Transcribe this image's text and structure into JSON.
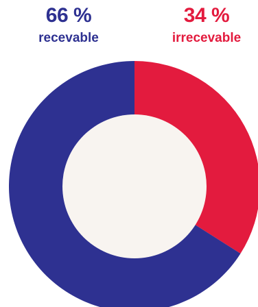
{
  "chart_data": {
    "type": "pie",
    "style": "donut",
    "categories": [
      "recevable",
      "irrecevable"
    ],
    "values": [
      66,
      34
    ],
    "value_labels": [
      "66 %",
      "34 %"
    ],
    "colors": [
      "#2e3191",
      "#e31b3e"
    ],
    "center_color": "#f8f4f0"
  }
}
